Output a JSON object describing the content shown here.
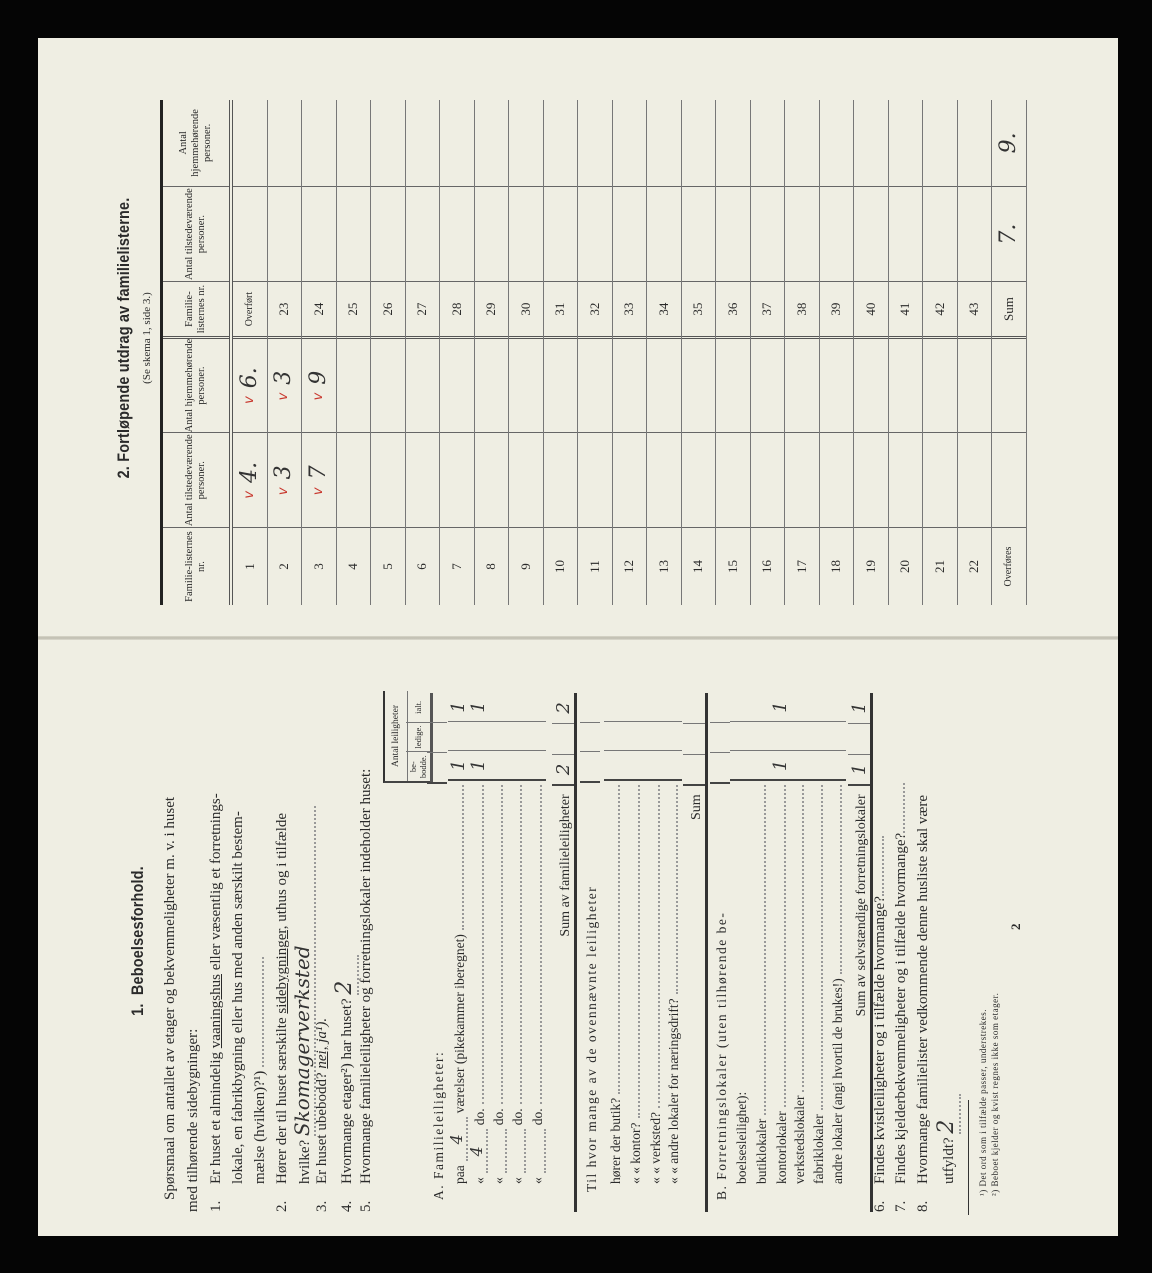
{
  "section2": {
    "number": "2.",
    "title": "Fortløpende utdrag av familielisterne.",
    "subtitle": "(Se skema 1, side 3.)",
    "headers": [
      "Familie-listernes nr.",
      "Antal tilstedeværende personer.",
      "Antal hjemmehørende personer.",
      "Familie-listernes nr.",
      "Antal tilstedeværende personer.",
      "Antal hjemmehørende personer."
    ],
    "check_color": "#c8372d",
    "rows": [
      {
        "nr1": "1",
        "t1": "4.",
        "h1": "6.",
        "c1": true,
        "nr2": "Overført",
        "t2": "",
        "h2": ""
      },
      {
        "nr1": "2",
        "t1": "3",
        "h1": "3",
        "c1": true,
        "nr2": "23",
        "t2": "",
        "h2": ""
      },
      {
        "nr1": "3",
        "t1": "7",
        "h1": "9",
        "c1": true,
        "nr2": "24",
        "t2": "",
        "h2": ""
      },
      {
        "nr1": "4",
        "t1": "",
        "h1": "",
        "nr2": "25",
        "t2": "",
        "h2": ""
      },
      {
        "nr1": "5",
        "t1": "",
        "h1": "",
        "nr2": "26",
        "t2": "",
        "h2": ""
      },
      {
        "nr1": "6",
        "t1": "",
        "h1": "",
        "nr2": "27",
        "t2": "",
        "h2": ""
      },
      {
        "nr1": "7",
        "t1": "",
        "h1": "",
        "nr2": "28",
        "t2": "",
        "h2": ""
      },
      {
        "nr1": "8",
        "t1": "",
        "h1": "",
        "nr2": "29",
        "t2": "",
        "h2": ""
      },
      {
        "nr1": "9",
        "t1": "",
        "h1": "",
        "nr2": "30",
        "t2": "",
        "h2": ""
      },
      {
        "nr1": "10",
        "t1": "",
        "h1": "",
        "nr2": "31",
        "t2": "",
        "h2": ""
      },
      {
        "nr1": "11",
        "t1": "",
        "h1": "",
        "nr2": "32",
        "t2": "",
        "h2": ""
      },
      {
        "nr1": "12",
        "t1": "",
        "h1": "",
        "nr2": "33",
        "t2": "",
        "h2": ""
      },
      {
        "nr1": "13",
        "t1": "",
        "h1": "",
        "nr2": "34",
        "t2": "",
        "h2": ""
      },
      {
        "nr1": "14",
        "t1": "",
        "h1": "",
        "nr2": "35",
        "t2": "",
        "h2": ""
      },
      {
        "nr1": "15",
        "t1": "",
        "h1": "",
        "nr2": "36",
        "t2": "",
        "h2": ""
      },
      {
        "nr1": "16",
        "t1": "",
        "h1": "",
        "nr2": "37",
        "t2": "",
        "h2": ""
      },
      {
        "nr1": "17",
        "t1": "",
        "h1": "",
        "nr2": "38",
        "t2": "",
        "h2": ""
      },
      {
        "nr1": "18",
        "t1": "",
        "h1": "",
        "nr2": "39",
        "t2": "",
        "h2": ""
      },
      {
        "nr1": "19",
        "t1": "",
        "h1": "",
        "nr2": "40",
        "t2": "",
        "h2": ""
      },
      {
        "nr1": "20",
        "t1": "",
        "h1": "",
        "nr2": "41",
        "t2": "",
        "h2": ""
      },
      {
        "nr1": "21",
        "t1": "",
        "h1": "",
        "nr2": "42",
        "t2": "",
        "h2": ""
      },
      {
        "nr1": "22",
        "t1": "",
        "h1": "",
        "nr2": "43",
        "t2": "",
        "h2": ""
      },
      {
        "nr1": "Overføres",
        "t1": "",
        "h1": "",
        "nr2": "Sum",
        "t2": "7.",
        "h2": "9."
      }
    ]
  },
  "section1": {
    "number": "1.",
    "title": "Beboelsesforhold.",
    "intro_1": "Spørsmaal om antallet av etager og bekvemmeligheter m. v. i huset",
    "intro_2": "med tilhørende sidebygninger:",
    "q1_num": "1.",
    "q1_a": "Er huset et almindelig",
    "q1_u1": "vaaningshus",
    "q1_b": "eller væsentlig et forretnings-",
    "q1_c": "lokale, en",
    "q1_d": "fabrikbygning eller hus med anden særskilt bestem-",
    "q1_e": "mælse (hvilken)?¹)",
    "q2_num": "2.",
    "q2_a": "Hører der til huset særskilte",
    "q2_u": "sidebygninger,",
    "q2_b": "uthus og i tilfælde",
    "q2_c": "hvilke?",
    "q2_answer": "Skomagerverksted",
    "q3_num": "3.",
    "q3_a": "Er huset ubebodd?",
    "q3_no": "nei,",
    "q3_b": "ja¹).",
    "q4_num": "4.",
    "q4_a": "Hvormange etager²) har huset?",
    "q4_answer": "2",
    "q5_num": "5.",
    "q5_a": "Hvormange familieleiligheter og forretningslokaler indeholder huset:",
    "table_header": "Antal leiligheter",
    "col_headers": [
      "be-bodde.",
      "ledige.",
      "ialt."
    ],
    "rows": [
      {
        "label": "A. Familieleiligheter:",
        "kind": "heading"
      },
      {
        "label": "paa",
        "hand": "4",
        "text": "værelser (pikekammer iberegnet)",
        "b": "1",
        "l": "",
        "i": "1"
      },
      {
        "label": "«",
        "hand": "4",
        "text": "do.",
        "b": "1",
        "l": "",
        "i": "1"
      },
      {
        "label": "«",
        "hand": "",
        "text": "do.",
        "b": "",
        "l": "",
        "i": ""
      },
      {
        "label": "«",
        "hand": "",
        "text": "do.",
        "b": "",
        "l": "",
        "i": ""
      },
      {
        "label": "«",
        "hand": "",
        "text": "do.",
        "b": "",
        "l": "",
        "i": ""
      },
      {
        "label": "Sum av familieleiligheter",
        "kind": "sum",
        "b": "2",
        "l": "",
        "i": "2"
      },
      {
        "label": "Til hvor mange av de ovennævnte leiligheter",
        "kind": "heading"
      },
      {
        "label": "hører der butik?",
        "b": "",
        "l": "",
        "i": ""
      },
      {
        "label": "« « kontor?",
        "b": "",
        "l": "",
        "i": ""
      },
      {
        "label": "« « verksted?",
        "b": "",
        "l": "",
        "i": ""
      },
      {
        "label": "« « andre lokaler for næringsdrift?",
        "b": "",
        "l": "",
        "i": ""
      },
      {
        "label": "Sum",
        "kind": "sum",
        "b": "",
        "l": "",
        "i": ""
      },
      {
        "label": "B. Forretningslokaler (uten tilhørende be-",
        "kind": "heading"
      },
      {
        "label": "boelsesleilighet):",
        "kind": "heading"
      },
      {
        "label": "butiklokaler",
        "b": "",
        "l": "",
        "i": ""
      },
      {
        "label": "kontorlokaler",
        "b": "1",
        "l": "",
        "i": "1"
      },
      {
        "label": "verkstedslokaler",
        "b": "",
        "l": "",
        "i": ""
      },
      {
        "label": "fabriklokaler",
        "b": "",
        "l": "",
        "i": ""
      },
      {
        "label": "andre lokaler (angi hvortil de brukes!)",
        "b": "",
        "l": "",
        "i": ""
      },
      {
        "label": "Sum av selvstændige forretningslokaler",
        "kind": "sum",
        "b": "1",
        "l": "",
        "i": "1"
      }
    ],
    "q6_num": "6.",
    "q6_a": "Findes kvistleiligheter og i tilfælde hvormange?",
    "q7_num": "7.",
    "q7_a": "Findes kjelderbekvemmeligheter og i tilfælde hvormange?",
    "q8_num": "8.",
    "q8_a": "Hvormange familielister vedkommende denne husliste skal være",
    "q8_b": "utfyldt?",
    "q8_answer": "2",
    "footnote_1": "¹) Det ord som i tilfælde passer, understrekes.",
    "footnote_2": "²) Beboet kjelder og kvist regnes ikke som etager.",
    "page_number": "2"
  }
}
